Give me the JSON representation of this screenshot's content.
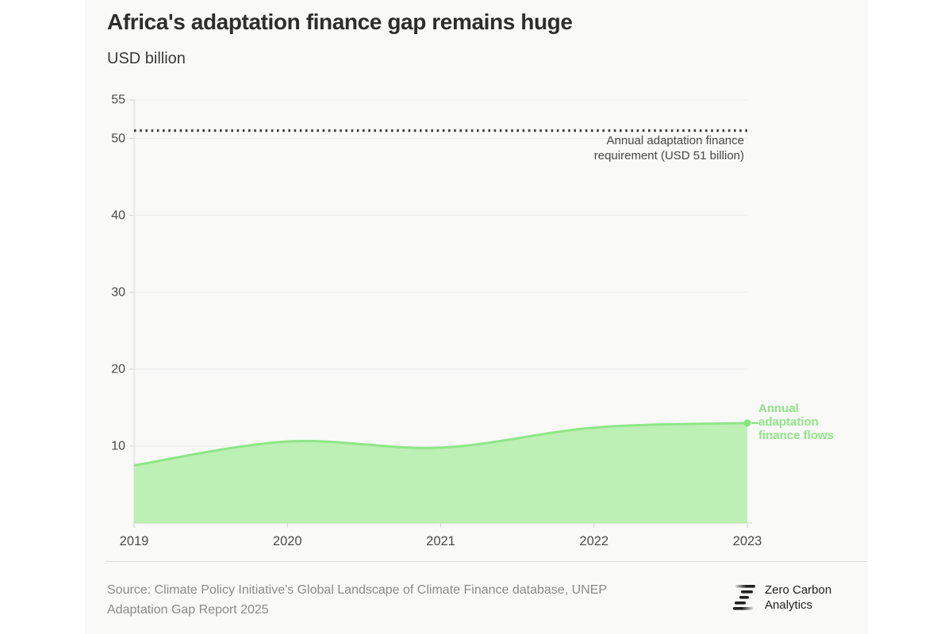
{
  "header": {
    "title": "Africa's adaptation finance gap remains huge",
    "subtitle": "USD billion"
  },
  "chart_data": {
    "type": "area",
    "title": "Africa's adaptation finance gap remains huge",
    "ylabel": "USD billion",
    "x": [
      "2019",
      "2020",
      "2021",
      "2022",
      "2023"
    ],
    "series": [
      {
        "name": "Annual adaptation finance flows",
        "values": [
          7.5,
          10.6,
          9.8,
          12.4,
          13.0
        ]
      }
    ],
    "reference_line": {
      "value": 51,
      "label_line1": "Annual adaptation finance",
      "label_line2": "requirement (USD 51 billion)"
    },
    "yticks": [
      55,
      50,
      40,
      30,
      20,
      10
    ],
    "ylim": [
      0,
      55
    ],
    "grid": "horizontal",
    "legend": {
      "position": "right-of-last-point",
      "line1": "Annual",
      "line2": "adaptation",
      "line3": "finance flows"
    },
    "colors": {
      "area_fill": "#b7efae",
      "line": "#8ee687",
      "marker": "#85e47e",
      "flows_label": "#8ee687",
      "requirement_dots": "#383838",
      "gridline": "#ececec",
      "axis": "#dcdcdc",
      "tick": "#cfcfcf",
      "tick_text": "#4b4b4b"
    }
  },
  "footer": {
    "source_line1": "Source: Climate Policy Initiative's Global Landscape of Climate Finance database, UNEP",
    "source_line2": "Adaptation Gap Report 2025",
    "brand_line1": "Zero Carbon",
    "brand_line2": "Analytics"
  }
}
